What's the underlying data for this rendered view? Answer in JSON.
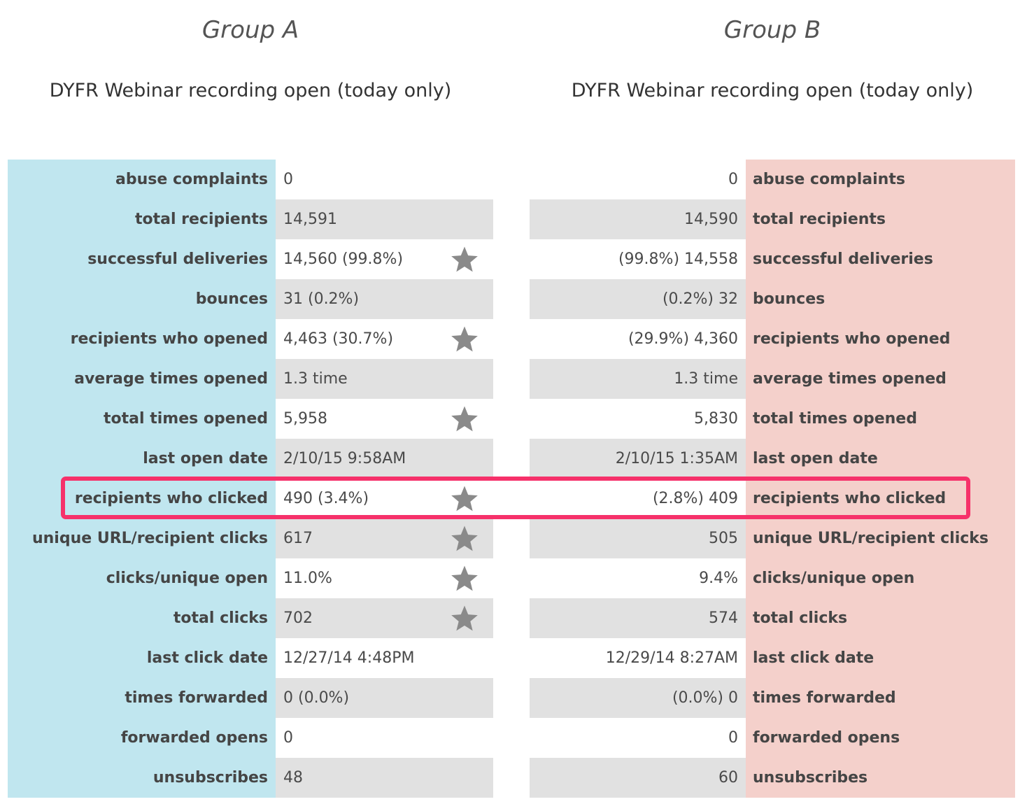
{
  "group_a": {
    "title": "Group A",
    "campaign": "DYFR Webinar recording open (today only)",
    "values": [
      "0",
      "14,591",
      "14,560 (99.8%)",
      "31 (0.2%)",
      "4,463 (30.7%)",
      "1.3 time",
      "5,958",
      "2/10/15 9:58AM",
      "490 (3.4%)",
      "617",
      "11.0%",
      "702",
      "12/27/14 4:48PM",
      "0 (0.0%)",
      "0",
      "48"
    ],
    "starred": [
      false,
      false,
      true,
      false,
      true,
      false,
      true,
      false,
      true,
      true,
      true,
      true,
      false,
      false,
      false,
      false
    ]
  },
  "group_b": {
    "title": "Group B",
    "campaign": "DYFR Webinar recording open (today only)",
    "values": [
      "0",
      "14,590",
      "(99.8%) 14,558",
      "(0.2%) 32",
      "(29.9%) 4,360",
      "1.3 time",
      "5,830",
      "2/10/15 1:35AM",
      "(2.8%) 409",
      "505",
      "9.4%",
      "574",
      "12/29/14 8:27AM",
      "(0.0%) 0",
      "0",
      "60"
    ]
  },
  "metrics": [
    "abuse complaints",
    "total recipients",
    "successful deliveries",
    "bounces",
    "recipients who opened",
    "average times opened",
    "total times opened",
    "last open date",
    "recipients who clicked",
    "unique URL/recipient clicks",
    "clicks/unique open",
    "total clicks",
    "last click date",
    "times forwarded",
    "forwarded opens",
    "unsubscribes"
  ],
  "highlighted_metric": "recipients who clicked",
  "colors": {
    "group_a_label_bg": "#c0e6ef",
    "group_b_label_bg": "#f4d0cb",
    "alt_row_bg": "#e1e1e1",
    "highlight_border": "#f6316a",
    "star": "#8a8a8a"
  },
  "icons": {
    "winner_marker": "star-icon"
  }
}
